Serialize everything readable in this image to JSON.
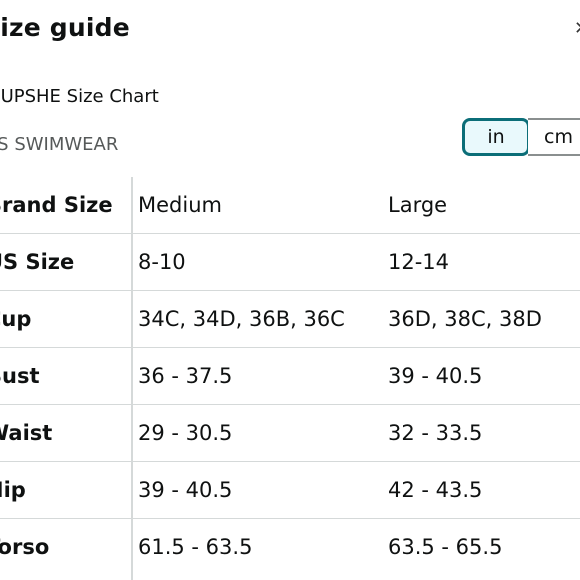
{
  "header": {
    "title": "Size guide",
    "close_icon": "close-icon"
  },
  "chart_name": "CUPSHE Size Chart",
  "category": "US SWIMWEAR",
  "units": {
    "in_label": "in",
    "cm_label": "cm",
    "selected": "in"
  },
  "table": {
    "rows": [
      {
        "label": "Brand Size",
        "values": [
          "Medium",
          "Large"
        ]
      },
      {
        "label": "US Size",
        "values": [
          "8-10",
          "12-14"
        ]
      },
      {
        "label": "Cup",
        "values": [
          "34C, 34D, 36B, 36C",
          "36D, 38C, 38D"
        ]
      },
      {
        "label": "Bust",
        "values": [
          "36 - 37.5",
          "39 - 40.5"
        ]
      },
      {
        "label": "Waist",
        "values": [
          "29 - 30.5",
          "32 - 33.5"
        ]
      },
      {
        "label": "Hip",
        "values": [
          "39 - 40.5",
          "42 - 43.5"
        ]
      },
      {
        "label": "Torso",
        "values": [
          "61.5 - 63.5",
          "63.5 - 65.5"
        ]
      }
    ]
  },
  "colors": {
    "accent": "#0b6e78",
    "selected_bg": "#e9f9fc",
    "divider": "#d5d9d9"
  }
}
